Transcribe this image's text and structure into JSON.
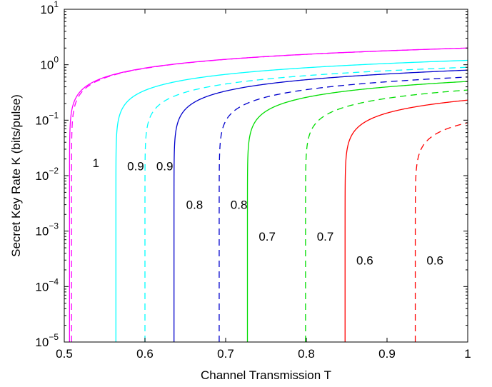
{
  "chart_data": {
    "type": "line",
    "xlabel": "Channel Transmission T",
    "ylabel": "Secret Key Rate K (bits/pulse)",
    "xlim": [
      0.5,
      1.0
    ],
    "ylim": [
      1e-05,
      10
    ],
    "yscale": "log",
    "grid": false,
    "legend": "none",
    "x_ticks": [
      {
        "value": 0.5,
        "label": "0.5"
      },
      {
        "value": 0.6,
        "label": "0.6"
      },
      {
        "value": 0.7,
        "label": "0.7"
      },
      {
        "value": 0.8,
        "label": "0.8"
      },
      {
        "value": 0.9,
        "label": "0.9"
      },
      {
        "value": 1.0,
        "label": "1"
      }
    ],
    "y_ticks": [
      {
        "value": 1e-05,
        "base": "10",
        "exp": "−5"
      },
      {
        "value": 0.0001,
        "base": "10",
        "exp": "−4"
      },
      {
        "value": 0.001,
        "base": "10",
        "exp": "−3"
      },
      {
        "value": 0.01,
        "base": "10",
        "exp": "−2"
      },
      {
        "value": 0.1,
        "base": "10",
        "exp": "−1"
      },
      {
        "value": 1,
        "base": "10",
        "exp": "0"
      },
      {
        "value": 10,
        "base": "10",
        "exp": "1"
      }
    ],
    "series": [
      {
        "label": "1",
        "color": "#ff00ff",
        "dash": false,
        "x0": 0.5065,
        "y_end": 2.0,
        "label_pos": [
          0.535,
          0.017
        ]
      },
      {
        "label": "1",
        "color": "#ff00ff",
        "dash": true,
        "x0": 0.509,
        "y_end": 2.0,
        "label_pos": null
      },
      {
        "label": "0.9",
        "color": "#00ffff",
        "dash": false,
        "x0": 0.564,
        "y_end": 1.2,
        "label_pos": [
          0.578,
          0.015
        ]
      },
      {
        "label": "0.9",
        "color": "#00ffff",
        "dash": true,
        "x0": 0.6,
        "y_end": 0.9,
        "label_pos": [
          0.614,
          0.015
        ]
      },
      {
        "label": "0.8",
        "color": "#0000cc",
        "dash": false,
        "x0": 0.636,
        "y_end": 0.8,
        "label_pos": [
          0.651,
          0.003
        ]
      },
      {
        "label": "0.8",
        "color": "#0000cc",
        "dash": true,
        "x0": 0.692,
        "y_end": 0.6,
        "label_pos": [
          0.706,
          0.003
        ]
      },
      {
        "label": "0.7",
        "color": "#00dd00",
        "dash": false,
        "x0": 0.727,
        "y_end": 0.5,
        "label_pos": [
          0.741,
          0.0008
        ]
      },
      {
        "label": "0.7",
        "color": "#00dd00",
        "dash": true,
        "x0": 0.799,
        "y_end": 0.35,
        "label_pos": [
          0.813,
          0.0008
        ]
      },
      {
        "label": "0.6",
        "color": "#ff0000",
        "dash": false,
        "x0": 0.848,
        "y_end": 0.23,
        "label_pos": [
          0.862,
          0.0003
        ]
      },
      {
        "label": "0.6",
        "color": "#ff0000",
        "dash": true,
        "x0": 0.935,
        "y_end": 0.09,
        "label_pos": [
          0.949,
          0.0003
        ]
      }
    ]
  }
}
